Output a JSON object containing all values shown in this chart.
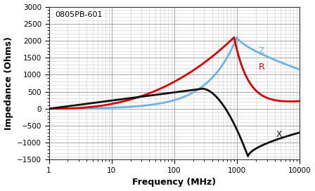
{
  "title_annotation": "0805PB-601",
  "xlabel": "Frequency (MHz)",
  "ylabel": "Impedance (Ohms)",
  "ylim": [
    -1500,
    3000
  ],
  "yticks": [
    -1500,
    -1000,
    -500,
    0,
    500,
    1000,
    1500,
    2000,
    2500,
    3000
  ],
  "xtick_vals": [
    1,
    10,
    100,
    1000,
    10000
  ],
  "colors_ZRX": [
    "#6ab4e8",
    "#dd0000",
    "#111111"
  ],
  "background_color": "#ffffff",
  "grid_major_color": "#999999",
  "grid_minor_color": "#cccccc",
  "line_width": 2.0
}
